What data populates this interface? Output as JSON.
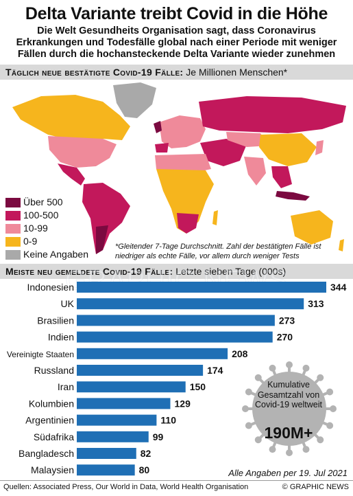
{
  "header": {
    "title": "Delta Variante treibt Covid in die Höhe",
    "subtitle": "Die Welt Gesundheits Organisation sagt, dass Coronavirus Erkrankungen und Todesfälle global nach einer Periode mit weniger Fällen durch die hochansteckende Delta Variante wieder zunehmen"
  },
  "map_section": {
    "heading": "Täglich neue bestätigte Covid-19 Fälle:",
    "heading_note": "Je Millionen Menschen*",
    "legend": [
      {
        "label": "Über 500",
        "color": "#7b0a40"
      },
      {
        "label": "100-500",
        "color": "#c2185b"
      },
      {
        "label": "10-99",
        "color": "#ef8a9a"
      },
      {
        "label": "0-9",
        "color": "#f6b51d"
      },
      {
        "label": "Keine Angaben",
        "color": "#a9a9a9"
      }
    ],
    "footnote": "*Gleitender 7-Tage Durchschnitt. Zahl der bestätigten Fälle ist niedriger als echte Fälle, vor allem durch weniger Tests"
  },
  "bar_section": {
    "heading": "Meiste neu gemeldete Covid-19 Fälle:",
    "heading_note": "Letzte sieben Tage (000s)"
  },
  "chart_data": {
    "type": "bar",
    "orientation": "horizontal",
    "categories": [
      "Indonesien",
      "UK",
      "Brasilien",
      "Indien",
      "Vereinigte Staaten",
      "Russland",
      "Iran",
      "Kolumbien",
      "Argentinien",
      "Südafrika",
      "Bangladesch",
      "Malaysien"
    ],
    "values": [
      344,
      313,
      273,
      270,
      208,
      174,
      150,
      129,
      110,
      99,
      82,
      80
    ],
    "title": "Meiste neu gemeldete Covid-19 Fälle: Letzte sieben Tage (000s)",
    "xlim": [
      0,
      344
    ],
    "grid": false,
    "bar_color": "#1f6fb5"
  },
  "callout": {
    "text": "Kumulative Gesamtzahl von Covid-19 weltweit",
    "value": "190M+"
  },
  "watermark": "GRAPHIC NEWS",
  "as_of": "Alle Angaben per 19. Jul 2021",
  "footer": {
    "source": "Quellen: Associated Press, Our World in Data, World Health Organisation",
    "credit": "© GRAPHIC NEWS"
  }
}
